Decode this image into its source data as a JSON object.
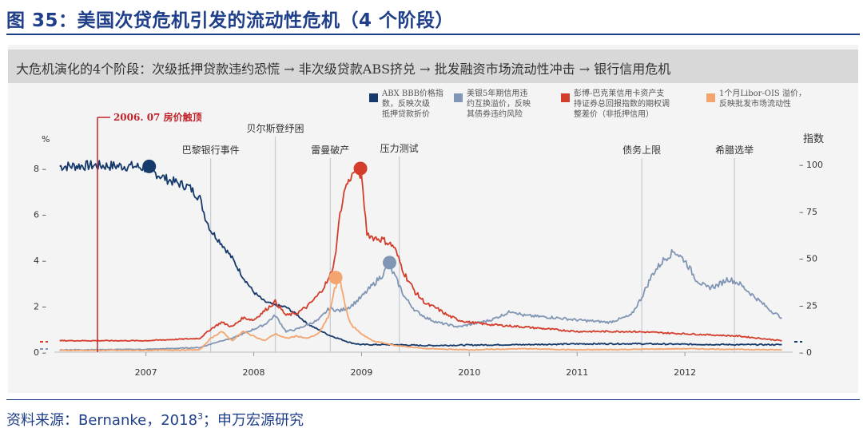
{
  "figure": {
    "title": "图 35：美国次贷危机引发的流动性危机（4 个阶段）",
    "banner": "大危机演化的4个阶段：次级抵押贷款违约恐慌 → 非次级贷款ABS挤兑 → 批发融资市场流动性冲击 → 银行信用危机",
    "source_prefix": "资料来源：Bernanke，2018",
    "source_sup": "3",
    "source_suffix": "；申万宏源研究"
  },
  "chart_data": {
    "type": "line",
    "x_range": [
      2006.15,
      2013.0
    ],
    "left_axis": {
      "unit": "%",
      "range": [
        0,
        8.2
      ],
      "ticks": [
        0,
        2,
        4,
        6,
        8
      ],
      "tick_labels": [
        "0 –",
        "2 –",
        "4 –",
        "6 –",
        "8 –"
      ]
    },
    "right_axis": {
      "unit": "指数",
      "range": [
        0,
        102.5
      ],
      "ticks": [
        0,
        25,
        50,
        75,
        100
      ],
      "tick_labels": [
        "– 0",
        "– 25",
        "– 50",
        "– 75",
        "– 100"
      ]
    },
    "x_ticks": [
      2007,
      2008,
      2009,
      2010,
      2011,
      2012
    ],
    "x_tick_labels": [
      "2007",
      "2008",
      "2009",
      "2010",
      "2011",
      "2012"
    ],
    "annotation": {
      "label": "2006. 07  房价触顶",
      "x": 2006.55,
      "color": "#c0232a"
    },
    "events": [
      {
        "label": "巴黎银行事件",
        "x": 2007.6
      },
      {
        "label": "贝尔斯登纾困",
        "x": 2008.2
      },
      {
        "label": "雷曼破产",
        "x": 2008.71
      },
      {
        "label": "压力测试",
        "x": 2009.35
      },
      {
        "label": "债务上限",
        "x": 2011.6
      },
      {
        "label": "希腊选举",
        "x": 2012.46
      }
    ],
    "series": [
      {
        "name": "ABX BBB价格指数，反映次级抵押贷款折价",
        "axis": "right",
        "color": "#163a6b",
        "points": [
          [
            2006.2,
            99
          ],
          [
            2006.5,
            99.5
          ],
          [
            2006.9,
            99
          ],
          [
            2007.0,
            98
          ],
          [
            2007.1,
            95
          ],
          [
            2007.2,
            92
          ],
          [
            2007.3,
            90
          ],
          [
            2007.4,
            88
          ],
          [
            2007.5,
            82
          ],
          [
            2007.55,
            72
          ],
          [
            2007.6,
            65
          ],
          [
            2007.7,
            58
          ],
          [
            2007.8,
            50
          ],
          [
            2007.9,
            40
          ],
          [
            2008.0,
            32
          ],
          [
            2008.1,
            27
          ],
          [
            2008.2,
            25
          ],
          [
            2008.3,
            24
          ],
          [
            2008.4,
            20
          ],
          [
            2008.5,
            15
          ],
          [
            2008.6,
            12
          ],
          [
            2008.7,
            9
          ],
          [
            2008.8,
            7
          ],
          [
            2008.9,
            5
          ],
          [
            2009.0,
            4
          ],
          [
            2009.3,
            4
          ],
          [
            2009.6,
            3.5
          ],
          [
            2010.0,
            3.8
          ],
          [
            2010.5,
            4
          ],
          [
            2011.0,
            4.4
          ],
          [
            2011.5,
            4.5
          ],
          [
            2012.0,
            4.2
          ],
          [
            2012.5,
            4
          ],
          [
            2012.9,
            4
          ]
        ]
      },
      {
        "name": "美银5年期信用违约互换溢价，反映其债券违约风险",
        "axis": "left",
        "color": "#8096b4",
        "points": [
          [
            2006.2,
            0.1
          ],
          [
            2007.0,
            0.12
          ],
          [
            2007.5,
            0.2
          ],
          [
            2007.7,
            0.5
          ],
          [
            2007.8,
            0.6
          ],
          [
            2007.9,
            0.8
          ],
          [
            2008.0,
            1.0
          ],
          [
            2008.1,
            1.2
          ],
          [
            2008.2,
            1.6
          ],
          [
            2008.3,
            0.9
          ],
          [
            2008.4,
            1.0
          ],
          [
            2008.5,
            1.2
          ],
          [
            2008.6,
            1.4
          ],
          [
            2008.7,
            1.9
          ],
          [
            2008.8,
            1.8
          ],
          [
            2008.9,
            2.0
          ],
          [
            2009.0,
            2.4
          ],
          [
            2009.1,
            2.9
          ],
          [
            2009.2,
            3.4
          ],
          [
            2009.25,
            3.8
          ],
          [
            2009.3,
            3.4
          ],
          [
            2009.4,
            2.4
          ],
          [
            2009.5,
            1.8
          ],
          [
            2009.6,
            1.5
          ],
          [
            2009.7,
            1.3
          ],
          [
            2009.8,
            1.2
          ],
          [
            2009.9,
            1.1
          ],
          [
            2010.0,
            1.2
          ],
          [
            2010.2,
            1.4
          ],
          [
            2010.4,
            1.8
          ],
          [
            2010.5,
            1.6
          ],
          [
            2010.8,
            1.5
          ],
          [
            2011.0,
            1.4
          ],
          [
            2011.3,
            1.3
          ],
          [
            2011.5,
            1.6
          ],
          [
            2011.6,
            2.4
          ],
          [
            2011.7,
            3.4
          ],
          [
            2011.8,
            4.0
          ],
          [
            2011.9,
            4.4
          ],
          [
            2012.0,
            4.0
          ],
          [
            2012.1,
            3.2
          ],
          [
            2012.2,
            2.8
          ],
          [
            2012.3,
            2.9
          ],
          [
            2012.4,
            3.2
          ],
          [
            2012.5,
            3.0
          ],
          [
            2012.6,
            2.6
          ],
          [
            2012.7,
            2.2
          ],
          [
            2012.8,
            1.8
          ],
          [
            2012.9,
            1.5
          ]
        ]
      },
      {
        "name": "彭博-巴克莱信用卡资产支持证券总回报指数的期权调整差价（非抵押信用）",
        "axis": "left",
        "color": "#d43d2b",
        "points": [
          [
            2006.2,
            0.5
          ],
          [
            2007.0,
            0.5
          ],
          [
            2007.5,
            0.6
          ],
          [
            2007.6,
            1.0
          ],
          [
            2007.7,
            1.3
          ],
          [
            2007.8,
            1.1
          ],
          [
            2007.9,
            1.5
          ],
          [
            2008.0,
            1.4
          ],
          [
            2008.1,
            1.8
          ],
          [
            2008.2,
            2.2
          ],
          [
            2008.3,
            1.6
          ],
          [
            2008.4,
            1.7
          ],
          [
            2008.5,
            2.0
          ],
          [
            2008.6,
            2.5
          ],
          [
            2008.7,
            3.2
          ],
          [
            2008.75,
            4.0
          ],
          [
            2008.8,
            6.0
          ],
          [
            2008.85,
            7.2
          ],
          [
            2008.9,
            7.6
          ],
          [
            2008.95,
            8.0
          ],
          [
            2009.0,
            7.6
          ],
          [
            2009.05,
            5.2
          ],
          [
            2009.1,
            5.0
          ],
          [
            2009.2,
            4.9
          ],
          [
            2009.3,
            4.6
          ],
          [
            2009.4,
            3.4
          ],
          [
            2009.5,
            2.6
          ],
          [
            2009.6,
            2.1
          ],
          [
            2009.7,
            1.9
          ],
          [
            2009.8,
            1.6
          ],
          [
            2009.9,
            1.4
          ],
          [
            2010.0,
            1.3
          ],
          [
            2010.2,
            1.2
          ],
          [
            2010.5,
            1.1
          ],
          [
            2011.0,
            0.9
          ],
          [
            2011.5,
            0.9
          ],
          [
            2012.0,
            0.8
          ],
          [
            2012.5,
            0.7
          ],
          [
            2012.9,
            0.5
          ]
        ]
      },
      {
        "name": "1个月Libor-OIS溢价，反映批发市场流动性",
        "axis": "left",
        "color": "#f4a46e",
        "points": [
          [
            2006.2,
            0.08
          ],
          [
            2007.0,
            0.08
          ],
          [
            2007.5,
            0.1
          ],
          [
            2007.6,
            0.6
          ],
          [
            2007.7,
            0.9
          ],
          [
            2007.8,
            0.5
          ],
          [
            2007.9,
            0.9
          ],
          [
            2008.0,
            0.7
          ],
          [
            2008.1,
            0.5
          ],
          [
            2008.2,
            0.8
          ],
          [
            2008.3,
            0.6
          ],
          [
            2008.4,
            0.7
          ],
          [
            2008.5,
            0.6
          ],
          [
            2008.6,
            0.8
          ],
          [
            2008.7,
            1.6
          ],
          [
            2008.75,
            2.8
          ],
          [
            2008.8,
            3.2
          ],
          [
            2008.85,
            2.0
          ],
          [
            2008.9,
            1.2
          ],
          [
            2009.0,
            0.8
          ],
          [
            2009.1,
            0.5
          ],
          [
            2009.3,
            0.3
          ],
          [
            2009.6,
            0.15
          ],
          [
            2010.0,
            0.1
          ],
          [
            2010.5,
            0.15
          ],
          [
            2011.0,
            0.1
          ],
          [
            2011.5,
            0.12
          ],
          [
            2012.0,
            0.15
          ],
          [
            2012.5,
            0.12
          ],
          [
            2012.9,
            0.1
          ]
        ]
      }
    ],
    "markers": [
      {
        "x": 2007.03,
        "y": 99,
        "axis": "right",
        "color": "#163a6b"
      },
      {
        "x": 2008.99,
        "y": 8.0,
        "axis": "left",
        "color": "#d43d2b"
      },
      {
        "x": 2009.26,
        "y": 3.9,
        "axis": "left",
        "color": "#8096b4"
      },
      {
        "x": 2008.76,
        "y": 3.25,
        "axis": "left",
        "color": "#f4a46e"
      }
    ],
    "legend": [
      {
        "label": [
          "ABX BBB价格指",
          "数，反映次级",
          "抵押贷款折价"
        ],
        "color": "#163a6b"
      },
      {
        "label": [
          "美银5年期信用违",
          "约互换溢价，反映",
          "其债券违约风险"
        ],
        "color": "#8096b4"
      },
      {
        "label": [
          "彭博-巴克莱信用卡资产支",
          "持证券总回报指数的期权调",
          "整差价（非抵押信用）"
        ],
        "color": "#d43d2b"
      },
      {
        "label": [
          "1个月Libor-OIS 溢价，",
          "反映批发市场流动性"
        ],
        "color": "#f4a46e"
      }
    ]
  }
}
